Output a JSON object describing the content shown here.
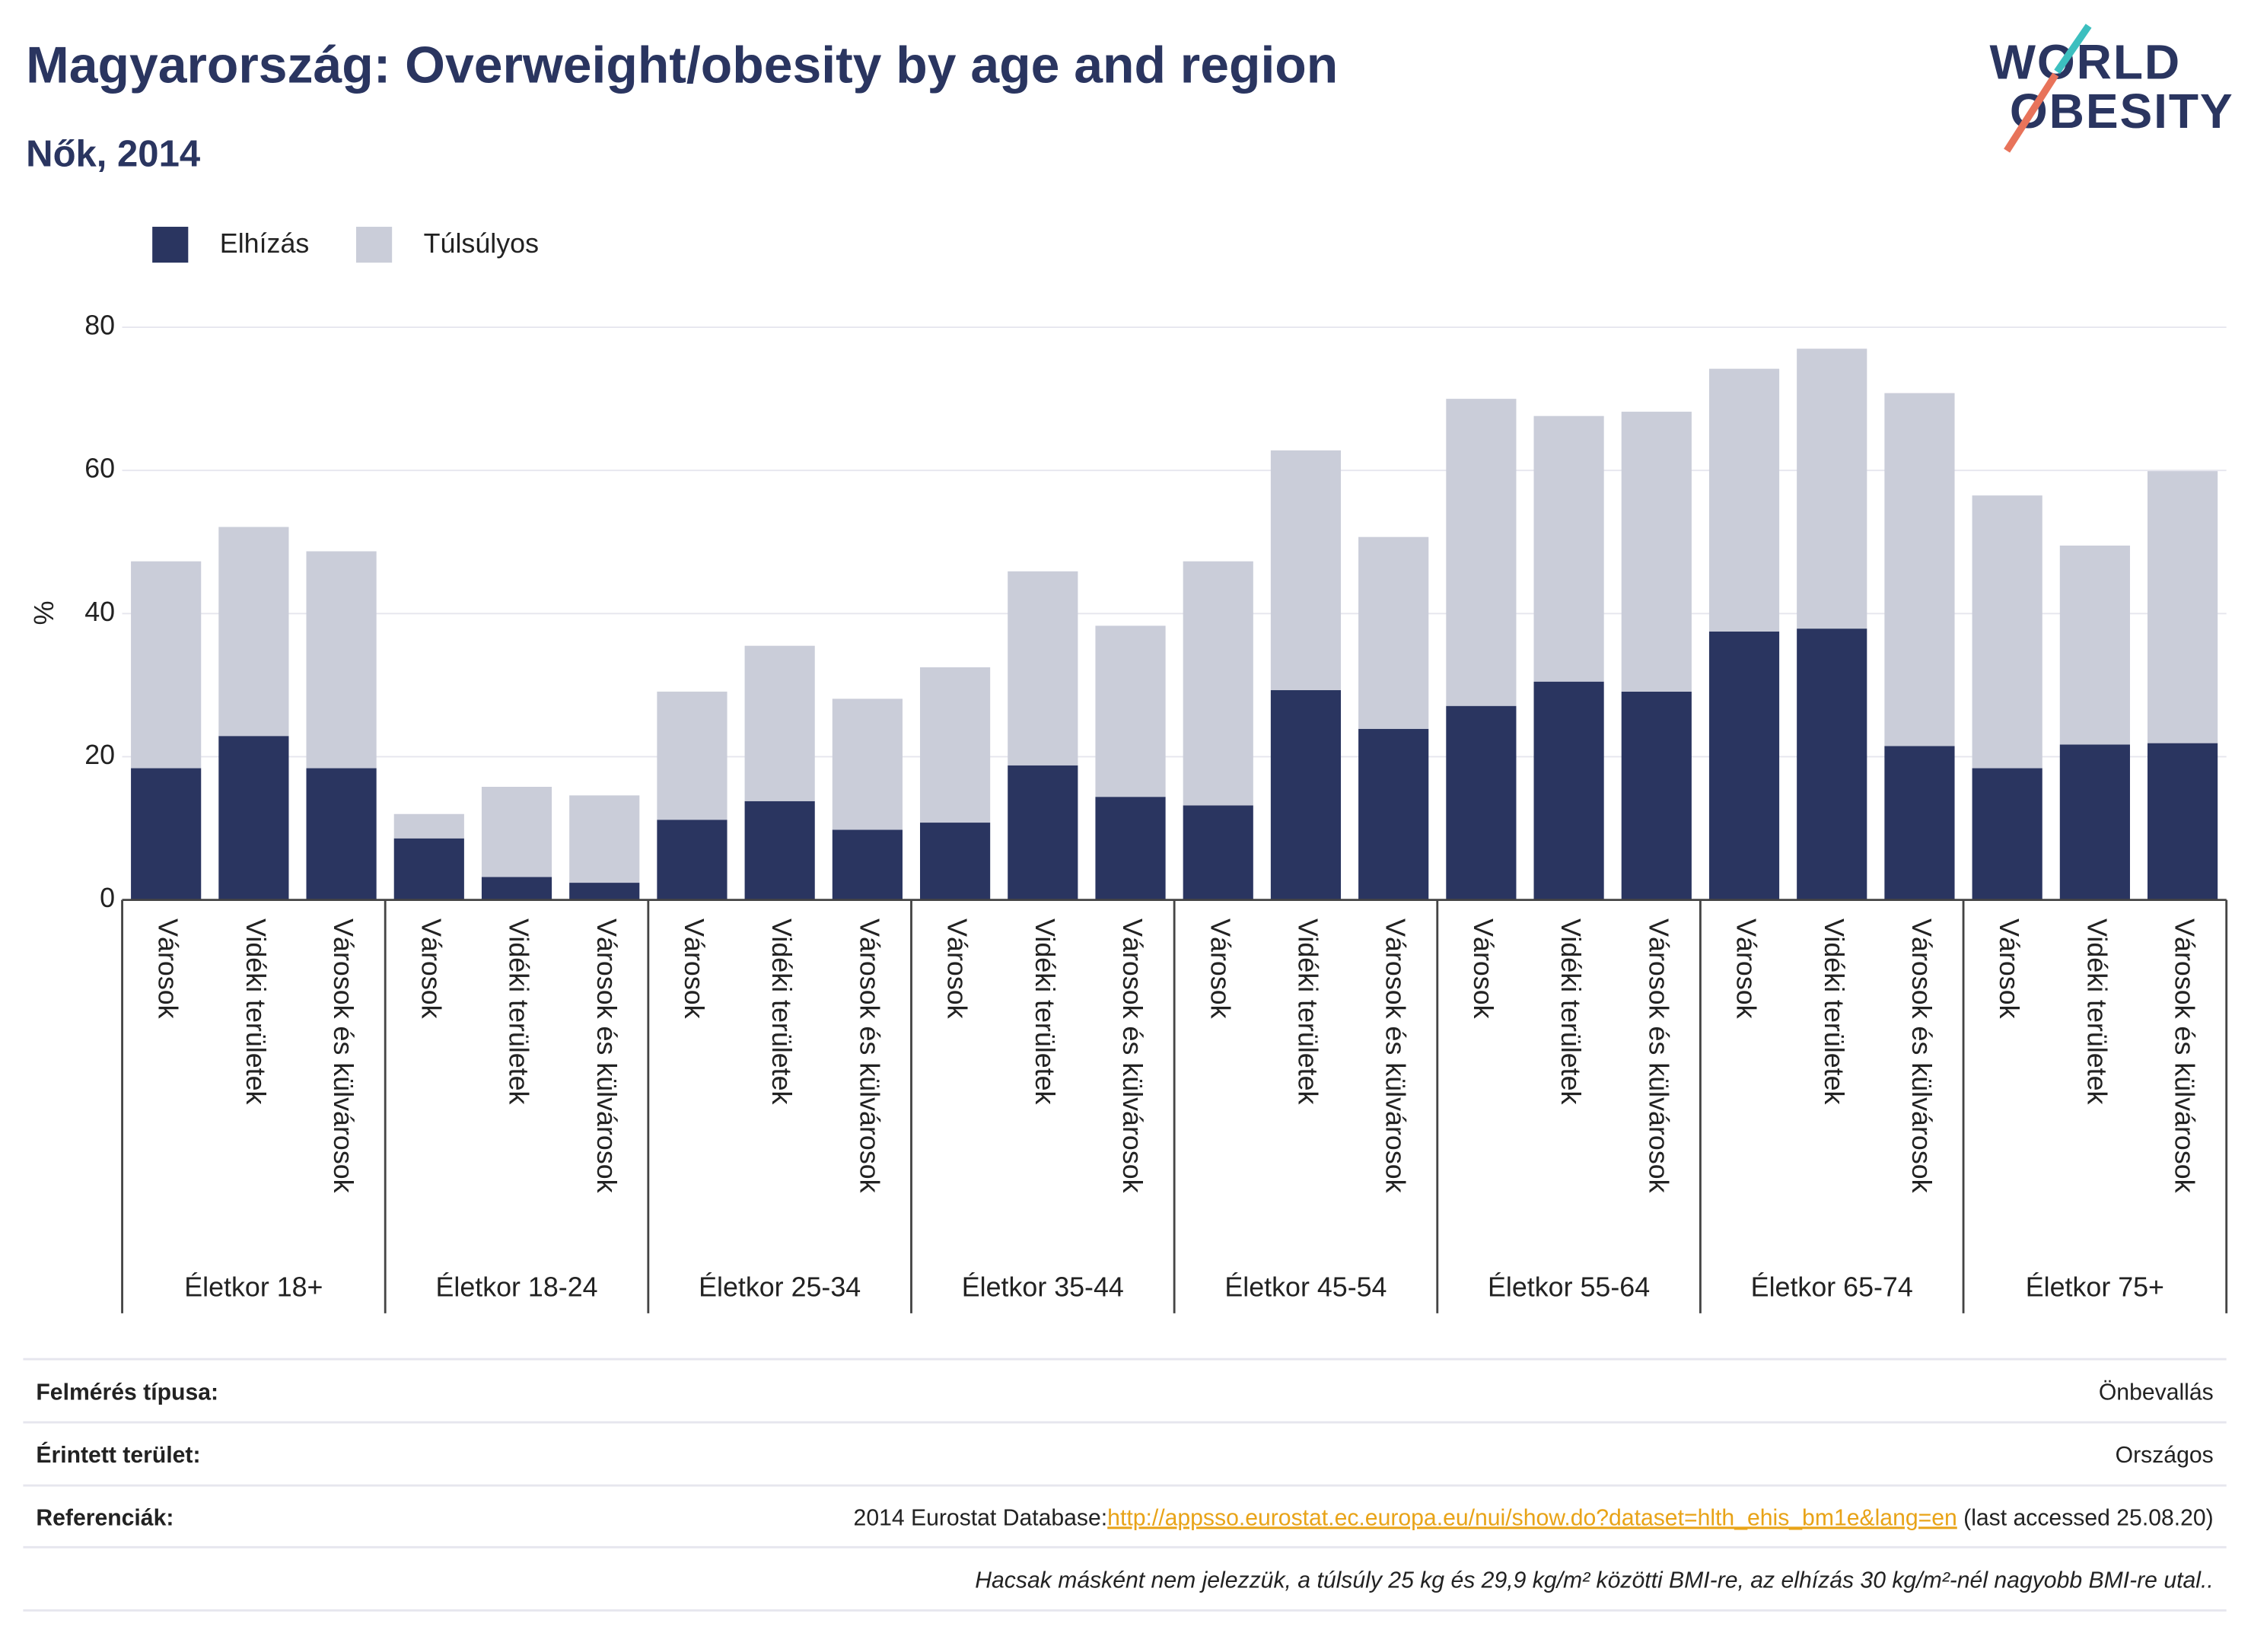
{
  "chart_data": {
    "type": "stacked_bar",
    "title": "Magyarország: Overweight/obesity by age and region",
    "subtitle": "Nők, 2014",
    "logo": [
      "WORLD",
      "OBESITY"
    ],
    "y_label": "%",
    "categories": [
      "Városok",
      "Vidéki területek",
      "Városok és külvárosok",
      "Városok",
      "Vidéki területek",
      "Városok és külvárosok",
      "Városok",
      "Vidéki területek",
      "Városok és külvárosok",
      "Városok",
      "Vidéki területek",
      "Városok és külvárosok",
      "Városok",
      "Vidéki területek",
      "Városok és külvárosok",
      "Városok",
      "Vidéki területek",
      "Városok és külvárosok",
      "Városok",
      "Vidéki területek",
      "Városok és külvárosok",
      "Városok",
      "Vidéki területek",
      "Városok és külvárosok"
    ],
    "groups": [
      "Életkor 18+",
      "Életkor 18-24",
      "Életkor 25-34",
      "Életkor 35-44",
      "Életkor 45-54",
      "Életkor 55-64",
      "Életkor 65-74",
      "Életkor 75+"
    ],
    "series": [
      {
        "name": "Elhízás",
        "color": "#2a3560",
        "values": [
          18.4,
          22.9,
          18.4,
          8.6,
          3.2,
          2.4,
          11.2,
          13.8,
          9.8,
          10.8,
          18.8,
          14.4,
          13.2,
          29.3,
          23.9,
          27.1,
          30.5,
          29.1,
          37.5,
          37.9,
          21.5,
          18.4,
          21.7,
          21.9
        ]
      },
      {
        "name": "Túlsúlyos",
        "color": "#cacdd9",
        "values": [
          28.9,
          29.2,
          30.3,
          3.4,
          12.6,
          12.2,
          17.9,
          21.7,
          18.3,
          21.7,
          27.1,
          23.9,
          34.1,
          33.5,
          26.8,
          42.9,
          37.1,
          39.1,
          36.7,
          39.1,
          49.3,
          38.1,
          27.8,
          38.0
        ]
      }
    ],
    "ylim": [
      0,
      80
    ],
    "yticks": [
      0,
      20,
      40,
      60,
      80
    ],
    "grid": true,
    "legend": "top-left"
  },
  "footer": {
    "rows": [
      {
        "label": "Felmérés típusa:",
        "value": "Önbevallás"
      },
      {
        "label": "Érintett terület:",
        "value": "Országos"
      },
      {
        "label": "Referenciák:",
        "value": "2014 Eurostat Database:",
        "link": "http://appsso.eurostat.ec.europa.eu/nui/show.do?dataset=hlth_ehis_bm1e&lang=en",
        "suffix": " (last accessed 25.08.20)"
      }
    ],
    "note": "Hacsak másként nem jelezzük, a túlsúly 25 kg és 29,9 kg/m² közötti BMI-re, az elhízás 30 kg/m²-nél nagyobb BMI-re utal.."
  }
}
